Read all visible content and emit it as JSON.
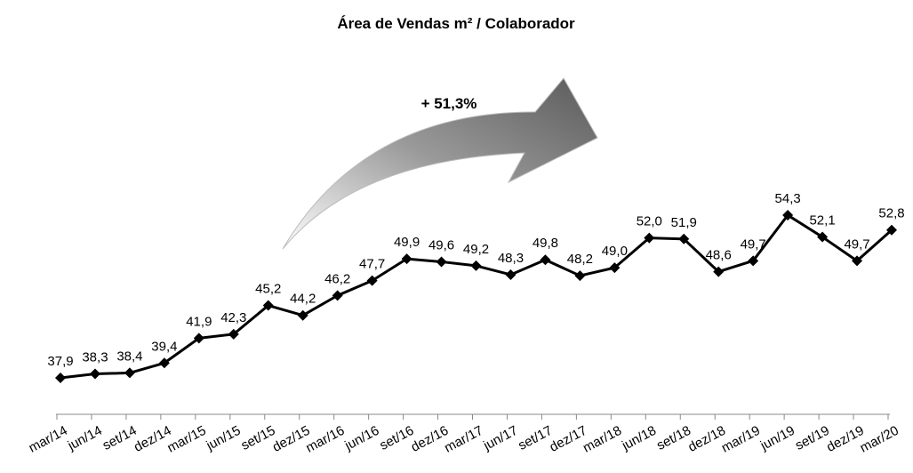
{
  "chart_data": {
    "type": "line",
    "title": "Área de Vendas m² / Colaborador",
    "annotation": "+ 51,3%",
    "categories": [
      "mar/14",
      "jun/14",
      "set/14",
      "dez/14",
      "mar/15",
      "jun/15",
      "set/15",
      "dez/15",
      "mar/16",
      "jun/16",
      "set/16",
      "dez/16",
      "mar/17",
      "jun/17",
      "set/17",
      "dez/17",
      "mar/18",
      "jun/18",
      "set/18",
      "dez/18",
      "mar/19",
      "jun/19",
      "set/19",
      "dez/19",
      "mar/20"
    ],
    "values": [
      37.9,
      38.3,
      38.4,
      39.4,
      41.9,
      42.3,
      45.2,
      44.2,
      46.2,
      47.7,
      49.9,
      49.6,
      49.2,
      48.3,
      49.8,
      48.2,
      49.0,
      52.0,
      51.9,
      48.6,
      49.7,
      54.3,
      52.1,
      49.7,
      52.8
    ],
    "value_labels": [
      "37,9",
      "38,3",
      "38,4",
      "39,4",
      "41,9",
      "42,3",
      "45,2",
      "44,2",
      "46,2",
      "47,7",
      "49,9",
      "49,6",
      "49,2",
      "48,3",
      "49,8",
      "48,2",
      "49,0",
      "52,0",
      "51,9",
      "48,6",
      "49,7",
      "54,3",
      "52,1",
      "49,7",
      "52,8"
    ],
    "color": "#000000"
  }
}
